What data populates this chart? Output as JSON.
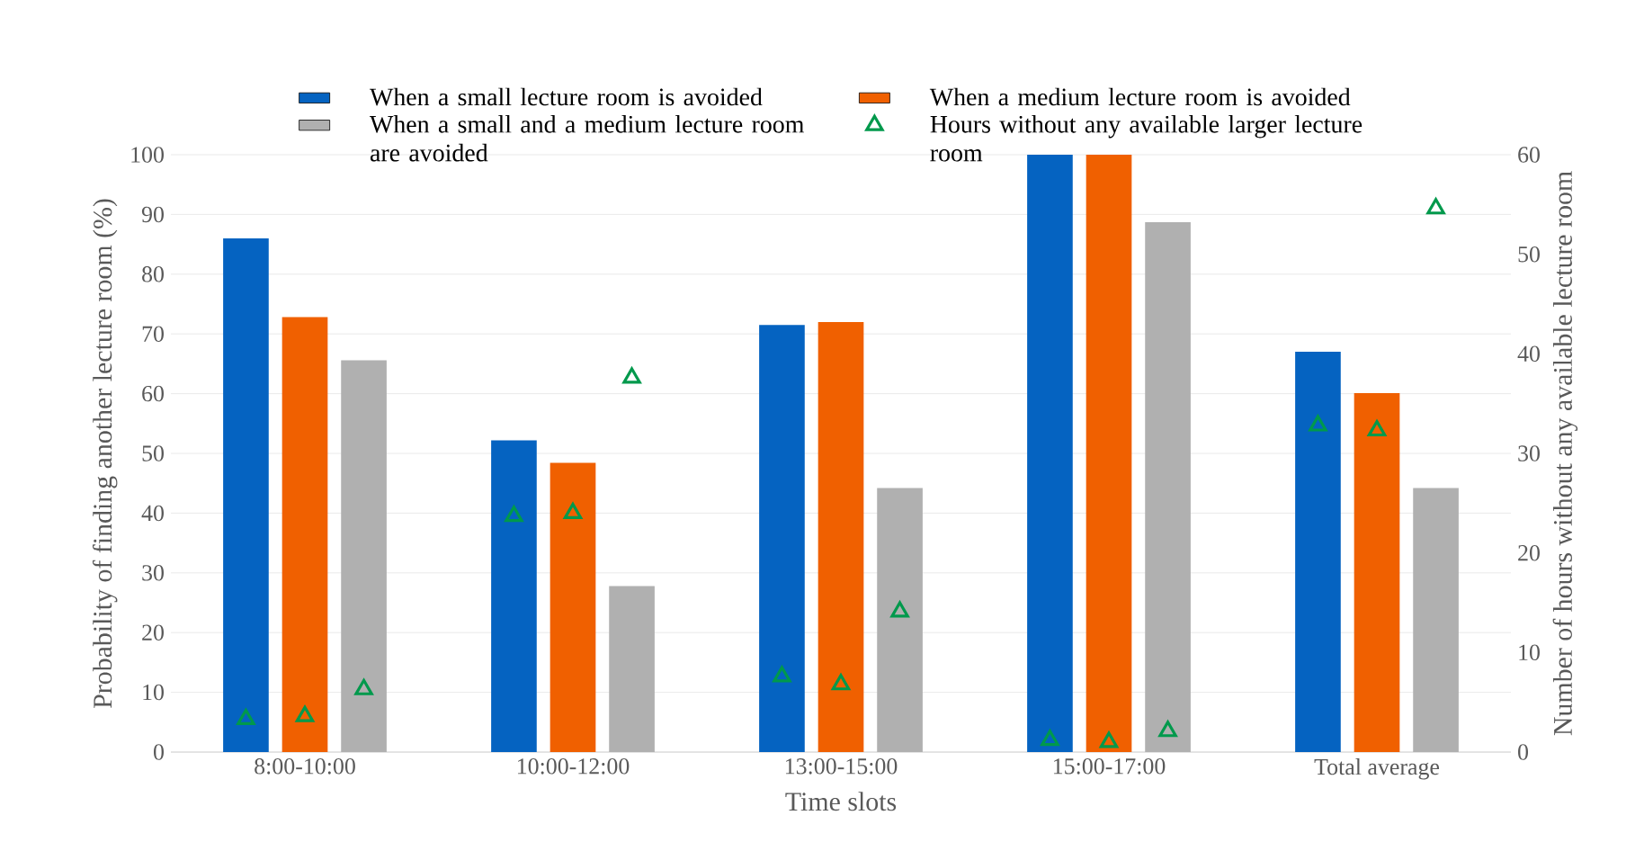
{
  "chart_data": {
    "type": "bar",
    "xlabel": "Time slots",
    "ylabel": "Probability of finding another lecture room (%)",
    "y2label": "Number of hours without any available lecture room",
    "categories": [
      "8:00-10:00",
      "10:00-12:00",
      "13:00-15:00",
      "15:00-17:00",
      "Total average"
    ],
    "series": [
      {
        "name": "When a small lecture room is avoided",
        "color": "#0563c1",
        "values": [
          86,
          52.2,
          71.5,
          100,
          67
        ]
      },
      {
        "name": "When a medium lecture room is avoided",
        "color": "#f06000",
        "values": [
          72.8,
          48.4,
          72,
          100,
          60.1
        ]
      },
      {
        "name": "When a small and a medium lecture room are avoided",
        "color": "#b0b0b0",
        "values": [
          65.6,
          27.8,
          44.2,
          88.7,
          44.2
        ]
      },
      {
        "name": "Hours without any available larger lecture room",
        "type": "scatter",
        "axis": "y2",
        "color": "#00994c",
        "marker": "triangle",
        "x": [
          "8:00-10:00",
          "8:00-10:00",
          "8:00-10:00",
          "10:00-12:00",
          "10:00-12:00",
          "10:00-12:00",
          "13:00-15:00",
          "13:00-15:00",
          "13:00-15:00",
          "15:00-17:00",
          "15:00-17:00",
          "15:00-17:00",
          "Total average",
          "Total average",
          "Total average"
        ],
        "values": [
          3.3,
          3.6,
          6.3,
          23.7,
          24,
          37.6,
          7.6,
          6.8,
          14.1,
          1.2,
          1,
          2.1,
          32.8,
          32.3,
          54.6
        ]
      }
    ],
    "ylim": [
      0,
      100
    ],
    "yticks": [
      0,
      10,
      20,
      30,
      40,
      50,
      60,
      70,
      80,
      90,
      100
    ],
    "y2lim": [
      0,
      60
    ],
    "y2ticks": [
      0,
      10,
      20,
      30,
      40,
      50,
      60
    ],
    "grid": "y",
    "legend": "top"
  }
}
